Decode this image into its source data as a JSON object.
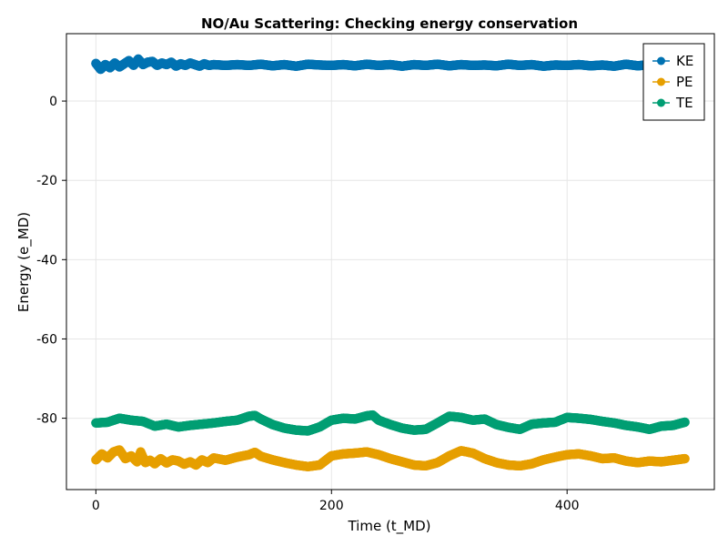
{
  "chart_data": {
    "type": "scatter",
    "title": "NO/Au Scattering: Checking energy conservation",
    "xlabel": "Time (t_MD)",
    "ylabel": "Energy (e_MD)",
    "xlim": [
      -25,
      525
    ],
    "ylim": [
      -98,
      17
    ],
    "x_ticks": [
      0,
      200,
      400
    ],
    "y_ticks": [
      0,
      -20,
      -40,
      -60,
      -80
    ],
    "grid": true,
    "legend_position": "top-right",
    "series": [
      {
        "name": "KE",
        "color": "#0072B2",
        "x": [
          0,
          4,
          8,
          12,
          16,
          20,
          24,
          28,
          32,
          36,
          40,
          44,
          48,
          52,
          56,
          60,
          64,
          68,
          72,
          76,
          80,
          84,
          88,
          92,
          96,
          100,
          110,
          120,
          130,
          140,
          150,
          160,
          170,
          180,
          190,
          200,
          210,
          220,
          230,
          240,
          250,
          260,
          270,
          280,
          290,
          300,
          310,
          320,
          330,
          340,
          350,
          360,
          370,
          380,
          390,
          400,
          410,
          420,
          430,
          440,
          450,
          460,
          470,
          480,
          490,
          500
        ],
        "values": [
          9.5,
          8.0,
          9.2,
          8.4,
          9.6,
          8.6,
          9.4,
          10.2,
          9.0,
          10.6,
          9.2,
          9.8,
          10.0,
          9.0,
          9.6,
          9.2,
          9.8,
          8.8,
          9.4,
          9.0,
          9.6,
          9.2,
          8.8,
          9.4,
          9.0,
          9.2,
          9.0,
          9.2,
          9.0,
          9.3,
          8.9,
          9.2,
          8.8,
          9.3,
          9.1,
          9.0,
          9.2,
          8.9,
          9.3,
          9.0,
          9.2,
          8.8,
          9.2,
          9.0,
          9.3,
          8.9,
          9.2,
          9.0,
          9.1,
          8.9,
          9.3,
          9.0,
          9.2,
          8.8,
          9.1,
          9.0,
          9.2,
          8.9,
          9.1,
          8.8,
          9.3,
          8.9,
          9.2,
          8.8,
          9.1,
          8.9
        ]
      },
      {
        "name": "PE",
        "color": "#E69F00",
        "x": [
          0,
          5,
          10,
          15,
          20,
          25,
          30,
          35,
          38,
          42,
          46,
          50,
          55,
          60,
          65,
          70,
          75,
          80,
          85,
          90,
          95,
          100,
          110,
          120,
          130,
          135,
          140,
          150,
          160,
          170,
          180,
          190,
          200,
          210,
          220,
          230,
          240,
          250,
          260,
          270,
          280,
          290,
          300,
          310,
          320,
          330,
          340,
          350,
          360,
          370,
          380,
          390,
          400,
          410,
          420,
          430,
          440,
          450,
          460,
          470,
          480,
          490,
          500
        ],
        "values": [
          -90.5,
          -89.0,
          -90.0,
          -88.5,
          -88.0,
          -90.2,
          -89.5,
          -91.0,
          -88.5,
          -91.2,
          -90.6,
          -91.5,
          -90.2,
          -91.3,
          -90.5,
          -90.8,
          -91.6,
          -91.0,
          -91.8,
          -90.5,
          -91.2,
          -90.0,
          -90.6,
          -89.8,
          -89.2,
          -88.6,
          -89.6,
          -90.5,
          -91.2,
          -91.8,
          -92.2,
          -91.8,
          -89.5,
          -89.0,
          -88.8,
          -88.5,
          -89.2,
          -90.2,
          -91.0,
          -91.8,
          -92.0,
          -91.2,
          -89.5,
          -88.2,
          -88.8,
          -90.2,
          -91.2,
          -91.8,
          -92.0,
          -91.5,
          -90.5,
          -89.8,
          -89.2,
          -89.0,
          -89.5,
          -90.2,
          -90.0,
          -90.8,
          -91.2,
          -90.8,
          -91.0,
          -90.6,
          -90.2
        ]
      },
      {
        "name": "TE",
        "color": "#009E73",
        "x": [
          0,
          10,
          20,
          30,
          40,
          50,
          60,
          70,
          80,
          90,
          100,
          110,
          120,
          130,
          135,
          140,
          150,
          160,
          170,
          180,
          190,
          200,
          210,
          220,
          230,
          235,
          240,
          250,
          260,
          270,
          280,
          290,
          300,
          310,
          320,
          330,
          340,
          350,
          360,
          370,
          380,
          390,
          400,
          410,
          420,
          430,
          440,
          450,
          460,
          470,
          480,
          490,
          500
        ],
        "values": [
          -81.2,
          -81.0,
          -80.0,
          -80.5,
          -80.8,
          -82.0,
          -81.5,
          -82.2,
          -81.8,
          -81.5,
          -81.2,
          -80.8,
          -80.5,
          -79.5,
          -79.3,
          -80.2,
          -81.6,
          -82.5,
          -83.0,
          -83.2,
          -82.2,
          -80.5,
          -80.0,
          -80.2,
          -79.4,
          -79.2,
          -80.5,
          -81.6,
          -82.5,
          -83.0,
          -82.8,
          -81.2,
          -79.5,
          -79.8,
          -80.5,
          -80.2,
          -81.6,
          -82.3,
          -82.8,
          -81.5,
          -81.2,
          -81.0,
          -79.8,
          -80.0,
          -80.3,
          -80.8,
          -81.2,
          -81.8,
          -82.2,
          -82.8,
          -82.0,
          -81.8,
          -81.0
        ]
      }
    ]
  }
}
